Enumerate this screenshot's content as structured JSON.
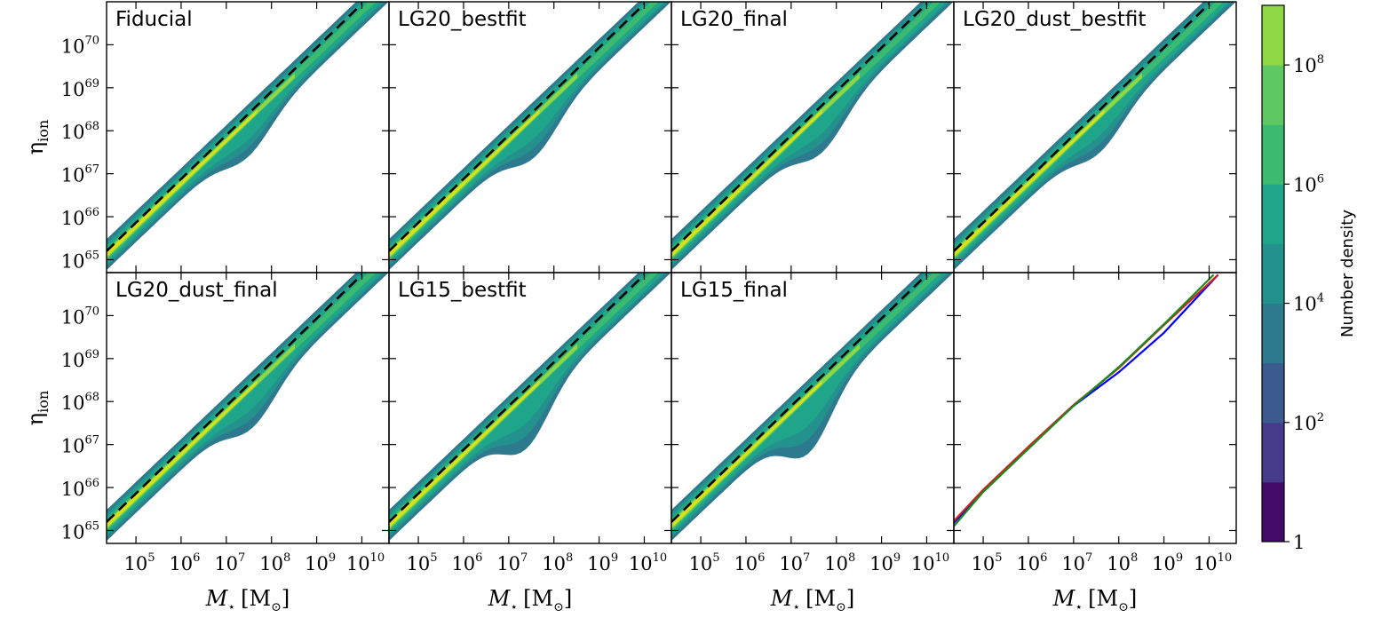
{
  "chart_data": {
    "type": "heatmap",
    "x_scale": "log10",
    "y_scale": "log10",
    "xlim_log10": [
      4.35,
      10.6
    ],
    "ylim_log10": [
      64.7,
      71.0
    ],
    "x_tick_exponents": [
      5,
      6,
      7,
      8,
      9,
      10
    ],
    "y_tick_exponents": [
      65,
      66,
      67,
      68,
      69,
      70
    ],
    "tick_base": "10",
    "xlabel_symbol": "M",
    "xlabel_sub": "⋆",
    "xlabel_unit": "[M",
    "xlabel_unit_sub": "⊙",
    "xlabel_close": "]",
    "ylabel_symbol": "η",
    "ylabel_sub": "ion",
    "fit_line": {
      "style": "dashed black",
      "slope": 1.0,
      "x_log10": [
        4.35,
        10.0
      ],
      "y_log10": [
        65.2,
        70.95
      ]
    },
    "panels": [
      {
        "title": "Fiducial",
        "lump": {
          "x": 7.5,
          "y": 68.2,
          "depth": 0.5
        }
      },
      {
        "title": "LG20_bestfit",
        "lump": {
          "x": 7.6,
          "y": 68.3,
          "depth": 0.6
        }
      },
      {
        "title": "LG20_final",
        "lump": {
          "x": 7.7,
          "y": 68.3,
          "depth": 0.6
        }
      },
      {
        "title": "LG20_dust_bestfit",
        "lump": {
          "x": 7.6,
          "y": 68.2,
          "depth": 0.5
        }
      },
      {
        "title": "LG20_dust_final",
        "lump": {
          "x": 7.6,
          "y": 68.2,
          "depth": 0.6
        }
      },
      {
        "title": "LG15_bestfit",
        "lump": {
          "x": 7.4,
          "y": 67.8,
          "depth": 0.9
        }
      },
      {
        "title": "LG15_final",
        "lump": {
          "x": 7.4,
          "y": 67.9,
          "depth": 1.0
        }
      },
      {
        "title": "",
        "lines": [
          {
            "name": "blue",
            "color": "#0000ff",
            "x": [
              4.35,
              5.0,
              6.0,
              7.0,
              8.0,
              9.0,
              10.2
            ],
            "y": [
              65.18,
              65.9,
              66.92,
              67.9,
              68.68,
              69.6,
              70.95
            ]
          },
          {
            "name": "red",
            "color": "#d62020",
            "x": [
              4.35,
              5.0,
              6.0,
              7.0,
              8.0,
              9.0,
              10.2
            ],
            "y": [
              65.22,
              65.95,
              66.95,
              67.92,
              68.78,
              69.78,
              70.95
            ]
          },
          {
            "name": "green",
            "color": "#1a8a1a",
            "x": [
              4.35,
              5.0,
              6.0,
              7.0,
              8.0,
              9.0,
              10.1
            ],
            "y": [
              65.1,
              65.9,
              66.9,
              67.9,
              68.8,
              69.8,
              70.95
            ]
          }
        ]
      }
    ],
    "colorbar": {
      "label": "Number density",
      "scale": "log10",
      "range_log10": [
        0,
        9
      ],
      "bounds_log10": [
        0,
        1,
        2,
        3,
        4,
        5,
        6,
        7,
        8,
        9
      ],
      "colors": [
        "#440a68",
        "#463b8a",
        "#3b5a8f",
        "#2d7a8e",
        "#23928c",
        "#1fa68a",
        "#3cba70",
        "#5ec962",
        "#8fd744",
        "#d8e219"
      ],
      "ticks": [
        {
          "pos": 0,
          "base": "1",
          "exp": ""
        },
        {
          "pos": 2,
          "base": "10",
          "exp": "2"
        },
        {
          "pos": 4,
          "base": "10",
          "exp": "4"
        },
        {
          "pos": 6,
          "base": "10",
          "exp": "6"
        },
        {
          "pos": 8,
          "base": "10",
          "exp": "8"
        }
      ]
    }
  }
}
